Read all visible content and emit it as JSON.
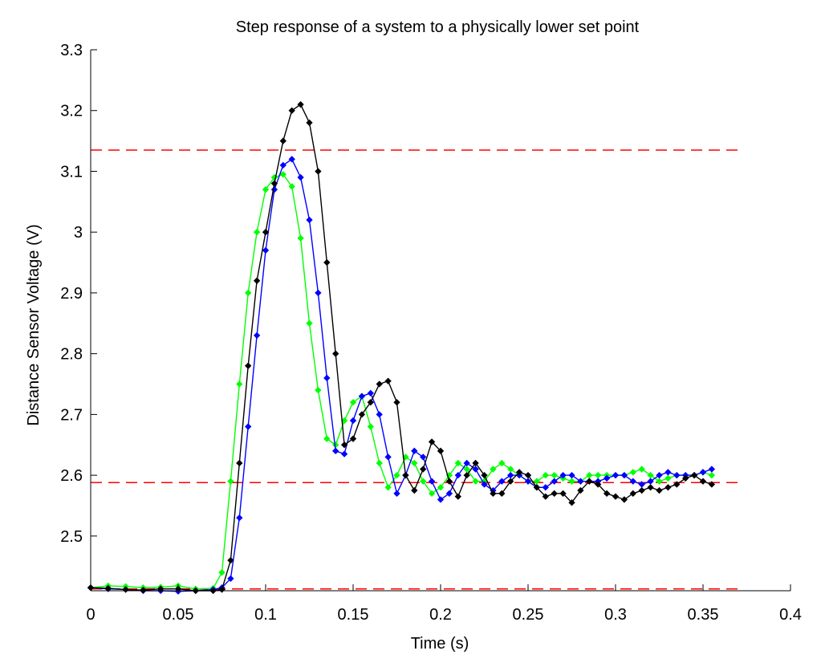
{
  "chart_data": {
    "type": "line",
    "title": "Step response of a system to a physically lower set point",
    "xlabel": "Time (s)",
    "ylabel": "Distance Sensor Voltage (V)",
    "xlim": [
      0,
      0.4
    ],
    "ylim": [
      2.41,
      3.3
    ],
    "xticks": [
      0,
      0.05,
      0.1,
      0.15,
      0.2,
      0.25,
      0.3,
      0.35,
      0.4
    ],
    "xtick_labels": [
      "0",
      "0.05",
      "0.1",
      "0.15",
      "0.2",
      "0.25",
      "0.3",
      "0.35",
      "0.4"
    ],
    "yticks": [
      2.5,
      2.6,
      2.7,
      2.8,
      2.9,
      3.0,
      3.1,
      3.2,
      3.3
    ],
    "ytick_labels": [
      "2.5",
      "2.6",
      "2.7",
      "2.8",
      "2.9",
      "3",
      "3.1",
      "3.2",
      "3.3"
    ],
    "grid": false,
    "reference_lines": [
      {
        "y": 3.135,
        "x_range": [
          0,
          0.372
        ],
        "color": "#ff0000",
        "style": "dashed"
      },
      {
        "y": 2.588,
        "x_range": [
          0,
          0.372
        ],
        "color": "#ff0000",
        "style": "dashed"
      },
      {
        "y": 2.413,
        "x_range": [
          0,
          0.372
        ],
        "color": "#ff0000",
        "style": "dashed"
      }
    ],
    "series": [
      {
        "color": "#00ff00",
        "marker": "diamond",
        "x": [
          0,
          0.01,
          0.02,
          0.03,
          0.04,
          0.05,
          0.06,
          0.07,
          0.075,
          0.08,
          0.085,
          0.09,
          0.095,
          0.1,
          0.105,
          0.11,
          0.115,
          0.12,
          0.125,
          0.13,
          0.135,
          0.14,
          0.145,
          0.15,
          0.155,
          0.16,
          0.165,
          0.17,
          0.175,
          0.18,
          0.185,
          0.19,
          0.195,
          0.2,
          0.205,
          0.21,
          0.215,
          0.22,
          0.225,
          0.23,
          0.235,
          0.24,
          0.245,
          0.25,
          0.255,
          0.26,
          0.265,
          0.27,
          0.275,
          0.28,
          0.285,
          0.29,
          0.295,
          0.3,
          0.305,
          0.31,
          0.315,
          0.32,
          0.325,
          0.33,
          0.335,
          0.34,
          0.345,
          0.35,
          0.355
        ],
        "y": [
          2.415,
          2.418,
          2.417,
          2.415,
          2.416,
          2.418,
          2.413,
          2.414,
          2.44,
          2.59,
          2.75,
          2.9,
          3.0,
          3.07,
          3.09,
          3.095,
          3.075,
          2.99,
          2.85,
          2.74,
          2.66,
          2.65,
          2.69,
          2.72,
          2.73,
          2.68,
          2.62,
          2.58,
          2.6,
          2.63,
          2.62,
          2.59,
          2.57,
          2.58,
          2.6,
          2.62,
          2.61,
          2.59,
          2.59,
          2.61,
          2.62,
          2.61,
          2.6,
          2.59,
          2.59,
          2.6,
          2.6,
          2.595,
          2.59,
          2.59,
          2.6,
          2.6,
          2.6,
          2.6,
          2.6,
          2.605,
          2.61,
          2.6,
          2.59,
          2.595,
          2.6,
          2.6,
          2.6,
          2.605,
          2.6
        ]
      },
      {
        "color": "#0000ff",
        "marker": "diamond",
        "x": [
          0,
          0.01,
          0.02,
          0.03,
          0.04,
          0.05,
          0.06,
          0.07,
          0.075,
          0.08,
          0.085,
          0.09,
          0.095,
          0.1,
          0.105,
          0.11,
          0.115,
          0.12,
          0.125,
          0.13,
          0.135,
          0.14,
          0.145,
          0.15,
          0.155,
          0.16,
          0.165,
          0.17,
          0.175,
          0.18,
          0.185,
          0.19,
          0.195,
          0.2,
          0.205,
          0.21,
          0.215,
          0.22,
          0.225,
          0.23,
          0.235,
          0.24,
          0.245,
          0.25,
          0.255,
          0.26,
          0.265,
          0.27,
          0.275,
          0.28,
          0.285,
          0.29,
          0.295,
          0.3,
          0.305,
          0.31,
          0.315,
          0.32,
          0.325,
          0.33,
          0.335,
          0.34,
          0.345,
          0.35,
          0.355
        ],
        "y": [
          2.415,
          2.413,
          2.412,
          2.41,
          2.41,
          2.409,
          2.41,
          2.412,
          2.415,
          2.43,
          2.53,
          2.68,
          2.83,
          2.97,
          3.07,
          3.11,
          3.12,
          3.09,
          3.02,
          2.9,
          2.76,
          2.64,
          2.635,
          2.69,
          2.73,
          2.735,
          2.7,
          2.63,
          2.57,
          2.6,
          2.64,
          2.63,
          2.59,
          2.56,
          2.57,
          2.6,
          2.62,
          2.61,
          2.585,
          2.575,
          2.59,
          2.6,
          2.6,
          2.59,
          2.58,
          2.58,
          2.59,
          2.6,
          2.6,
          2.59,
          2.59,
          2.59,
          2.595,
          2.6,
          2.6,
          2.59,
          2.585,
          2.59,
          2.6,
          2.605,
          2.6,
          2.6,
          2.6,
          2.605,
          2.61
        ]
      },
      {
        "color": "#000000",
        "marker": "diamond",
        "x": [
          0,
          0.01,
          0.02,
          0.03,
          0.04,
          0.05,
          0.06,
          0.07,
          0.075,
          0.08,
          0.085,
          0.09,
          0.095,
          0.1,
          0.105,
          0.11,
          0.115,
          0.12,
          0.125,
          0.13,
          0.135,
          0.14,
          0.145,
          0.15,
          0.155,
          0.16,
          0.165,
          0.17,
          0.175,
          0.18,
          0.185,
          0.19,
          0.195,
          0.2,
          0.205,
          0.21,
          0.215,
          0.22,
          0.225,
          0.23,
          0.235,
          0.24,
          0.245,
          0.25,
          0.255,
          0.26,
          0.265,
          0.27,
          0.275,
          0.28,
          0.285,
          0.29,
          0.295,
          0.3,
          0.305,
          0.31,
          0.315,
          0.32,
          0.325,
          0.33,
          0.335,
          0.34,
          0.345,
          0.35,
          0.355
        ],
        "y": [
          2.415,
          2.414,
          2.412,
          2.411,
          2.413,
          2.413,
          2.41,
          2.41,
          2.412,
          2.46,
          2.62,
          2.78,
          2.92,
          3.0,
          3.08,
          3.15,
          3.2,
          3.21,
          3.18,
          3.1,
          2.95,
          2.8,
          2.65,
          2.66,
          2.7,
          2.72,
          2.75,
          2.755,
          2.72,
          2.6,
          2.575,
          2.61,
          2.655,
          2.64,
          2.59,
          2.565,
          2.6,
          2.62,
          2.6,
          2.57,
          2.57,
          2.59,
          2.605,
          2.6,
          2.58,
          2.565,
          2.57,
          2.57,
          2.555,
          2.575,
          2.59,
          2.585,
          2.57,
          2.565,
          2.56,
          2.57,
          2.575,
          2.58,
          2.575,
          2.58,
          2.585,
          2.595,
          2.6,
          2.59,
          2.585
        ]
      }
    ]
  }
}
